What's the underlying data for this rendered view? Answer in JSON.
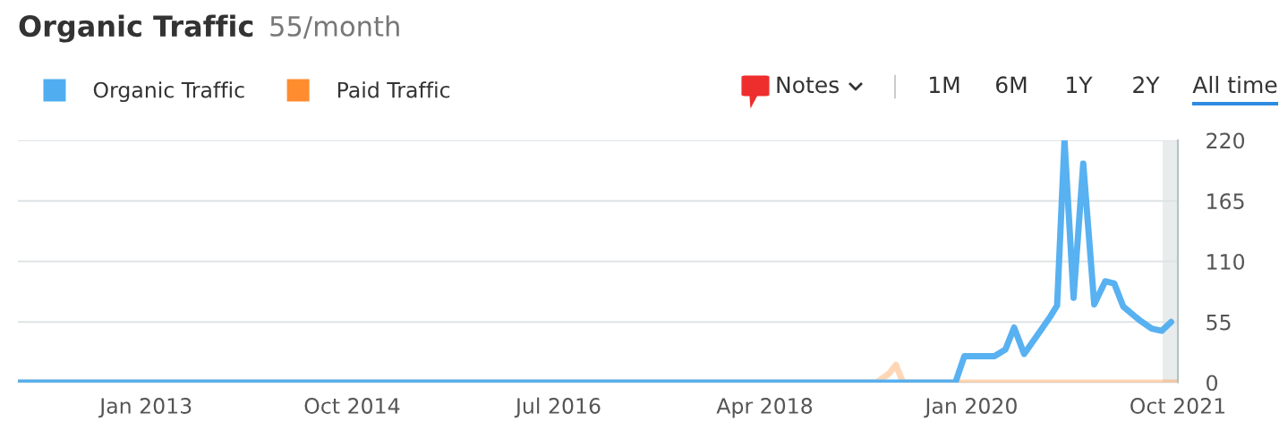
{
  "chart_data": {
    "type": "line",
    "title": "Organic Traffic",
    "subtitle": "55/month",
    "annotations": [
      "Notes",
      "1M",
      "6M",
      "1Y",
      "2Y",
      "All time"
    ],
    "xlim": [
      "2011-12-01",
      "2021-10-01"
    ],
    "xticks": [
      {
        "value": "2013-01-01",
        "label": "Jan 2013"
      },
      {
        "value": "2014-10-01",
        "label": "Oct 2014"
      },
      {
        "value": "2016-07-01",
        "label": "Jul 2016"
      },
      {
        "value": "2018-04-01",
        "label": "Apr 2018"
      },
      {
        "value": "2020-01-01",
        "label": "Jan 2020"
      },
      {
        "value": "2021-10-01",
        "label": "Oct 2021"
      }
    ],
    "ylim": [
      0,
      220
    ],
    "yticks": [
      0,
      55,
      110,
      165,
      220
    ],
    "grid": "y",
    "legend": "top left",
    "bands": [
      {
        "axis": "x",
        "from": "2021-08-15",
        "to": "2021-10-01",
        "color": "#e8ecec"
      }
    ],
    "series": [
      {
        "name": "Paid Traffic",
        "color": "#ff8c2e",
        "x": [
          "2011-12-01",
          "2019-03-12",
          "2019-04-20",
          "2019-05-12",
          "2019-06-03",
          "2021-10-01"
        ],
        "values": [
          0,
          0,
          8,
          16,
          0,
          0
        ]
      },
      {
        "name": "Organic Traffic",
        "color": "#4fadf0",
        "x": [
          "2011-12-01",
          "2019-11-12",
          "2019-12-10",
          "2020-03-12",
          "2020-04-15",
          "2020-05-12",
          "2020-06-12",
          "2020-08-04",
          "2020-09-01",
          "2020-09-22",
          "2020-10-15",
          "2020-11-12",
          "2020-12-12",
          "2021-01-15",
          "2021-02-18",
          "2021-03-18",
          "2021-04-15",
          "2021-06-03",
          "2021-07-12",
          "2021-08-12",
          "2021-09-10"
        ],
        "values": [
          0,
          0,
          24,
          24,
          30,
          50,
          26,
          48,
          60,
          70,
          220,
          77,
          199,
          71,
          92,
          90,
          69,
          57,
          49,
          47,
          55
        ]
      }
    ]
  }
}
